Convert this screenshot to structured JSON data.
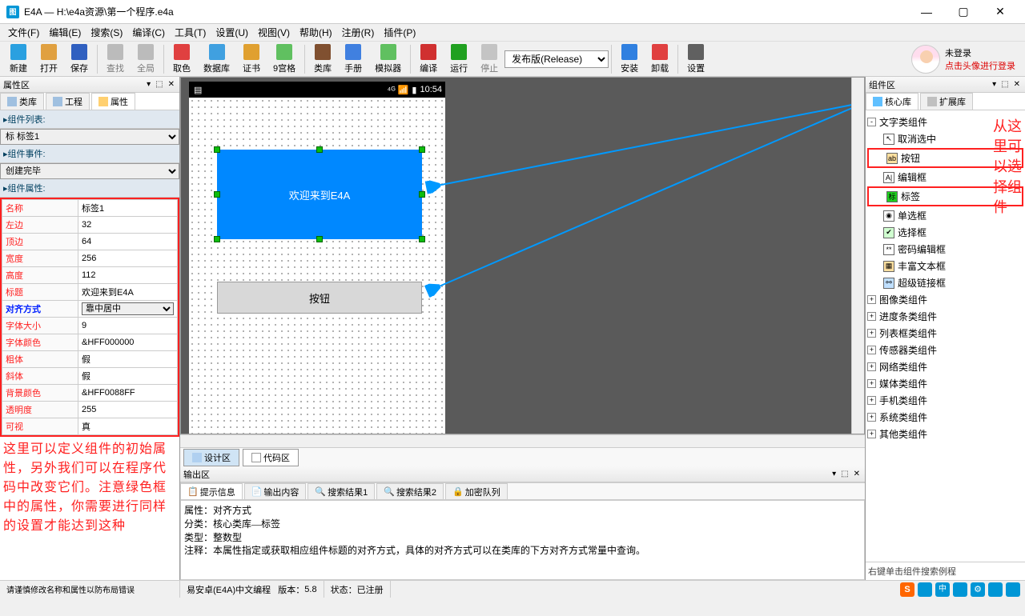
{
  "window": {
    "title": "E4A — H:\\e4a资源\\第一个程序.e4a",
    "app_icon_text": "图"
  },
  "menu": [
    "文件(F)",
    "编辑(E)",
    "搜索(S)",
    "编译(C)",
    "工具(T)",
    "设置(U)",
    "视图(V)",
    "帮助(H)",
    "注册(R)",
    "插件(P)"
  ],
  "toolbar": [
    {
      "label": "新建",
      "color": "#2aa0e0"
    },
    {
      "label": "打开",
      "color": "#e0a040"
    },
    {
      "label": "保存",
      "color": "#3060c0"
    },
    {
      "sep": true
    },
    {
      "label": "查找",
      "color": "#888",
      "disabled": true
    },
    {
      "label": "全局",
      "color": "#888",
      "disabled": true
    },
    {
      "sep": true
    },
    {
      "label": "取色",
      "color": "#e04040"
    },
    {
      "label": "数据库",
      "color": "#40a0e0"
    },
    {
      "label": "证书",
      "color": "#e0a030"
    },
    {
      "label": "9宫格",
      "color": "#60c060"
    },
    {
      "sep": true
    },
    {
      "label": "类库",
      "color": "#805030"
    },
    {
      "label": "手册",
      "color": "#4080e0"
    },
    {
      "label": "模拟器",
      "color": "#60c060"
    },
    {
      "sep": true
    },
    {
      "label": "编译",
      "color": "#d03030"
    },
    {
      "label": "运行",
      "color": "#20a020"
    },
    {
      "label": "停止",
      "color": "#999",
      "disabled": true
    },
    {
      "combo": "发布版(Release)"
    },
    {
      "sep": true
    },
    {
      "label": "安装",
      "color": "#3080e0"
    },
    {
      "label": "卸载",
      "color": "#e04040"
    },
    {
      "sep": true
    },
    {
      "label": "设置",
      "color": "#606060"
    }
  ],
  "user": {
    "status": "未登录",
    "hint": "点击头像进行登录"
  },
  "leftpanel": {
    "title": "属性区",
    "tabs": [
      {
        "label": "类库"
      },
      {
        "label": "工程"
      },
      {
        "label": "属性",
        "active": true
      }
    ],
    "section_list": "组件列表:",
    "list_value": "标 标签1",
    "section_event": "组件事件:",
    "event_value": "创建完毕",
    "section_prop": "组件属性:",
    "props": [
      {
        "k": "名称",
        "v": "标签1"
      },
      {
        "k": "左边",
        "v": "32"
      },
      {
        "k": "顶边",
        "v": "64"
      },
      {
        "k": "宽度",
        "v": "256"
      },
      {
        "k": "高度",
        "v": "112"
      },
      {
        "k": "标题",
        "v": "欢迎来到E4A"
      },
      {
        "k": "对齐方式",
        "v": "靠中居中",
        "sel": true
      },
      {
        "k": "字体大小",
        "v": "9"
      },
      {
        "k": "字体颜色",
        "v": "&HFF000000"
      },
      {
        "k": "粗体",
        "v": "假"
      },
      {
        "k": "斜体",
        "v": "假"
      },
      {
        "k": "背景颜色",
        "v": "&HFF0088FF"
      },
      {
        "k": "透明度",
        "v": "255"
      },
      {
        "k": "可视",
        "v": "真"
      }
    ],
    "annotation": "这里可以定义组件的初始属性，另外我们可以在程序代码中改变它们。注意绿色框中的属性，你需要进行同样的设置才能达到这种"
  },
  "designer": {
    "clock": "10:54",
    "label_text": "欢迎来到E4A",
    "button_text": "按钮",
    "tab_design": "设计区",
    "tab_code": "代码区"
  },
  "output": {
    "title": "输出区",
    "tabs": [
      "提示信息",
      "输出内容",
      "搜索结果1",
      "搜索结果2",
      "加密队列"
    ],
    "lines": [
      "属性：对齐方式",
      "分类：核心类库—标签",
      "类型：整数型",
      "注释：本属性指定或获取相应组件标题的对齐方式，具体的对齐方式可以在类库的下方对齐方式常量中查询。"
    ]
  },
  "rightpanel": {
    "title": "组件区",
    "tabs": [
      {
        "label": "核心库",
        "active": true
      },
      {
        "label": "扩展库"
      }
    ],
    "cat_open": "文字类组件",
    "items": [
      {
        "label": "取消选中",
        "ico": "↖",
        "bg": "#fff"
      },
      {
        "label": "按钮",
        "ico": "ab",
        "bg": "#ffe0a0",
        "boxed": true
      },
      {
        "label": "编辑框",
        "ico": "A|",
        "bg": "#fff"
      },
      {
        "label": "标签",
        "ico": "标",
        "bg": "#20d020",
        "boxed": true
      },
      {
        "label": "单选框",
        "ico": "◉",
        "bg": "#fff"
      },
      {
        "label": "选择框",
        "ico": "✔",
        "bg": "#d0ffd0"
      },
      {
        "label": "密码编辑框",
        "ico": "**",
        "bg": "#fff"
      },
      {
        "label": "丰富文本框",
        "ico": "▦",
        "bg": "#ffe0a0"
      },
      {
        "label": "超级链接框",
        "ico": "⚯",
        "bg": "#c0e0ff"
      }
    ],
    "cats": [
      "图像类组件",
      "进度条类组件",
      "列表框类组件",
      "传感器类组件",
      "网络类组件",
      "媒体类组件",
      "手机类组件",
      "系统类组件",
      "其他类组件"
    ],
    "annotation": "从这里可以选择组件",
    "hint": "右键单击组件搜索例程"
  },
  "status": {
    "left1": "请谨慎修改名称和属性以防布局错误",
    "left2": "易安卓(E4A)中文编程",
    "ver_label": "版本：",
    "ver": "5.8",
    "state_label": "状态：",
    "state": "已注册"
  },
  "colors": {
    "accent": "#0088ff",
    "red": "#ff2020",
    "sogou": "#ff6600"
  }
}
